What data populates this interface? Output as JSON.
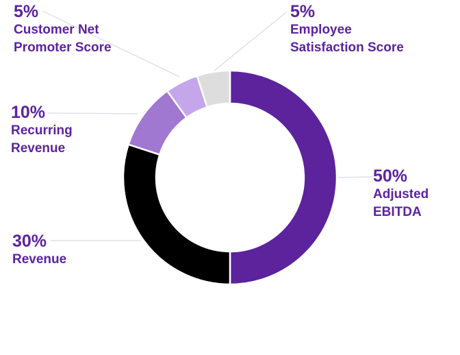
{
  "chart_data": {
    "type": "pie",
    "donut": true,
    "legend": "none",
    "colors": {
      "label_text": "#5b23a0",
      "leader_line": "#e3dee9",
      "separator": "#ffffff"
    },
    "slices": [
      {
        "value": 50,
        "percent_label": "50%",
        "label_lines": [
          "Adjusted",
          "EBITDA"
        ],
        "color": "#5c239c"
      },
      {
        "value": 30,
        "percent_label": "30%",
        "label_lines": [
          "Revenue"
        ],
        "color": "#000000"
      },
      {
        "value": 10,
        "percent_label": "10%",
        "label_lines": [
          "Recurring",
          "Revenue"
        ],
        "color": "#a077d1"
      },
      {
        "value": 5,
        "percent_label": "5%",
        "label_lines": [
          "Customer Net",
          "Promoter Score"
        ],
        "color": "#c5a6ea"
      },
      {
        "value": 5,
        "percent_label": "5%",
        "label_lines": [
          "Employee",
          "Satisfaction Score"
        ],
        "color": "#dddddd"
      }
    ]
  }
}
